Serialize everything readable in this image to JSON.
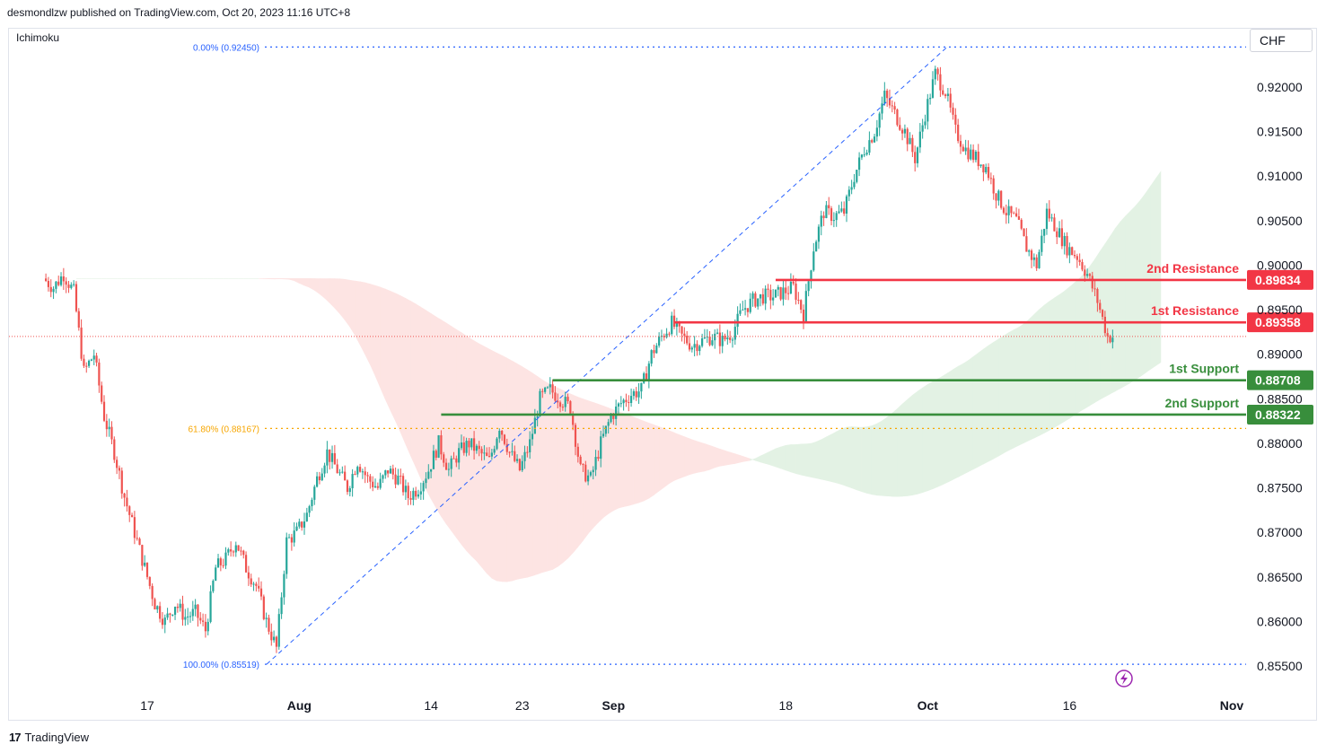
{
  "header": {
    "publisher": "desmondlzw published on TradingView.com, Oct 20, 2023 11:16 UTC+8"
  },
  "indicator": "Ichimoku",
  "currency": "CHF",
  "footer": {
    "logo_mark": "17",
    "brand": "TradingView"
  },
  "colors": {
    "up": "#26a69a",
    "down": "#ef5350",
    "resistance": "#f23645",
    "support": "#388e3c",
    "fib": "#2962ff",
    "fib61": "#f7a600",
    "cloud_bull": "#e3f2e4",
    "cloud_bear": "#fde4e3"
  },
  "chart_data": {
    "type": "candlestick",
    "y_axis": {
      "range": [
        0.851,
        0.9295
      ],
      "ticks": [
        "0.92000",
        "0.91500",
        "0.91000",
        "0.90500",
        "0.90000",
        "0.89500",
        "0.89000",
        "0.88500",
        "0.88000",
        "0.87500",
        "0.87000",
        "0.86500",
        "0.86000",
        "0.85500"
      ]
    },
    "x_axis": {
      "range_days": [
        "2023-07-07",
        "2023-11-01"
      ],
      "ticks": [
        {
          "label": "17",
          "date": "2023-07-17"
        },
        {
          "label": "Aug",
          "date": "2023-08-01"
        },
        {
          "label": "14",
          "date": "2023-08-14"
        },
        {
          "label": "23",
          "date": "2023-08-23"
        },
        {
          "label": "Sep",
          "date": "2023-09-01"
        },
        {
          "label": "18",
          "date": "2023-09-18"
        },
        {
          "label": "Oct",
          "date": "2023-10-02"
        },
        {
          "label": "16",
          "date": "2023-10-16"
        },
        {
          "label": "Nov",
          "date": "2023-11-01"
        }
      ]
    },
    "fibonacci": [
      {
        "label": "0.00% (0.92450)",
        "level": 0.9245
      },
      {
        "label": "61.80% (0.88167)",
        "level": 0.88167
      },
      {
        "label": "100.00% (0.85519)",
        "level": 0.85519
      }
    ],
    "levels": [
      {
        "name": "2nd Resistance",
        "value": "0.89834",
        "level": 0.89834,
        "kind": "resistance",
        "start_date": "2023-09-17"
      },
      {
        "name": "1st Resistance",
        "value": "0.89358",
        "level": 0.89358,
        "kind": "resistance",
        "start_date": "2023-09-07"
      },
      {
        "name": "1st Support",
        "value": "0.88708",
        "level": 0.88708,
        "kind": "support",
        "start_date": "2023-08-26"
      },
      {
        "name": "2nd Support",
        "value": "0.88322",
        "level": 0.88322,
        "kind": "support",
        "start_date": "2023-08-15"
      }
    ],
    "current_price": 0.892,
    "price_path": [
      [
        "2023-07-07",
        0.8985
      ],
      [
        "2023-07-08",
        0.8975
      ],
      [
        "2023-07-09",
        0.899
      ],
      [
        "2023-07-10",
        0.897
      ],
      [
        "2023-07-11",
        0.888
      ],
      [
        "2023-07-12",
        0.89
      ],
      [
        "2023-07-13",
        0.883
      ],
      [
        "2023-07-14",
        0.879
      ],
      [
        "2023-07-15",
        0.874
      ],
      [
        "2023-07-16",
        0.87
      ],
      [
        "2023-07-17",
        0.866
      ],
      [
        "2023-07-18",
        0.862
      ],
      [
        "2023-07-19",
        0.86
      ],
      [
        "2023-07-20",
        0.862
      ],
      [
        "2023-07-21",
        0.8605
      ],
      [
        "2023-07-22",
        0.861
      ],
      [
        "2023-07-23",
        0.859
      ],
      [
        "2023-07-24",
        0.866
      ],
      [
        "2023-07-25",
        0.867
      ],
      [
        "2023-07-26",
        0.869
      ],
      [
        "2023-07-27",
        0.866
      ],
      [
        "2023-07-28",
        0.864
      ],
      [
        "2023-07-29",
        0.86
      ],
      [
        "2023-07-30",
        0.857
      ],
      [
        "2023-07-31",
        0.869
      ],
      [
        "2023-08-01",
        0.87
      ],
      [
        "2023-08-02",
        0.872
      ],
      [
        "2023-08-03",
        0.876
      ],
      [
        "2023-08-04",
        0.879
      ],
      [
        "2023-08-05",
        0.877
      ],
      [
        "2023-08-06",
        0.875
      ],
      [
        "2023-08-07",
        0.878
      ],
      [
        "2023-08-08",
        0.876
      ],
      [
        "2023-08-09",
        0.875
      ],
      [
        "2023-08-10",
        0.877
      ],
      [
        "2023-08-11",
        0.876
      ],
      [
        "2023-08-12",
        0.874
      ],
      [
        "2023-08-13",
        0.875
      ],
      [
        "2023-08-14",
        0.877
      ],
      [
        "2023-08-15",
        0.88
      ],
      [
        "2023-08-16",
        0.877
      ],
      [
        "2023-08-17",
        0.879
      ],
      [
        "2023-08-18",
        0.88
      ],
      [
        "2023-08-19",
        0.879
      ],
      [
        "2023-08-20",
        0.878
      ],
      [
        "2023-08-21",
        0.882
      ],
      [
        "2023-08-22",
        0.879
      ],
      [
        "2023-08-23",
        0.877
      ],
      [
        "2023-08-24",
        0.88
      ],
      [
        "2023-08-25",
        0.885
      ],
      [
        "2023-08-26",
        0.886
      ],
      [
        "2023-08-27",
        0.885
      ],
      [
        "2023-08-28",
        0.884
      ],
      [
        "2023-08-29",
        0.877
      ],
      [
        "2023-08-30",
        0.876
      ],
      [
        "2023-08-31",
        0.88
      ],
      [
        "2023-09-01",
        0.883
      ],
      [
        "2023-09-02",
        0.8845
      ],
      [
        "2023-09-03",
        0.8855
      ],
      [
        "2023-09-04",
        0.886
      ],
      [
        "2023-09-05",
        0.89
      ],
      [
        "2023-09-06",
        0.892
      ],
      [
        "2023-09-07",
        0.8935
      ],
      [
        "2023-09-08",
        0.892
      ],
      [
        "2023-09-09",
        0.891
      ],
      [
        "2023-09-10",
        0.8915
      ],
      [
        "2023-09-11",
        0.892
      ],
      [
        "2023-09-12",
        0.8915
      ],
      [
        "2023-09-13",
        0.8925
      ],
      [
        "2023-09-14",
        0.895
      ],
      [
        "2023-09-15",
        0.896
      ],
      [
        "2023-09-16",
        0.8965
      ],
      [
        "2023-09-17",
        0.8965
      ],
      [
        "2023-09-18",
        0.897
      ],
      [
        "2023-09-19",
        0.8975
      ],
      [
        "2023-09-20",
        0.8945
      ],
      [
        "2023-09-21",
        0.902
      ],
      [
        "2023-09-22",
        0.906
      ],
      [
        "2023-09-23",
        0.9055
      ],
      [
        "2023-09-24",
        0.906
      ],
      [
        "2023-09-25",
        0.91
      ],
      [
        "2023-09-26",
        0.913
      ],
      [
        "2023-09-27",
        0.915
      ],
      [
        "2023-09-28",
        0.919
      ],
      [
        "2023-09-29",
        0.917
      ],
      [
        "2023-09-30",
        0.915
      ],
      [
        "2023-10-01",
        0.912
      ],
      [
        "2023-10-02",
        0.917
      ],
      [
        "2023-10-03",
        0.9215
      ],
      [
        "2023-10-04",
        0.9195
      ],
      [
        "2023-10-05",
        0.915
      ],
      [
        "2023-10-06",
        0.913
      ],
      [
        "2023-10-07",
        0.912
      ],
      [
        "2023-10-08",
        0.911
      ],
      [
        "2023-10-09",
        0.908
      ],
      [
        "2023-10-10",
        0.906
      ],
      [
        "2023-10-11",
        0.905
      ],
      [
        "2023-10-12",
        0.902
      ],
      [
        "2023-10-13",
        0.9
      ],
      [
        "2023-10-14",
        0.906
      ],
      [
        "2023-10-15",
        0.904
      ],
      [
        "2023-10-16",
        0.902
      ],
      [
        "2023-10-17",
        0.901
      ],
      [
        "2023-10-18",
        0.899
      ],
      [
        "2023-10-19",
        0.896
      ],
      [
        "2023-10-20",
        0.892
      ]
    ]
  }
}
